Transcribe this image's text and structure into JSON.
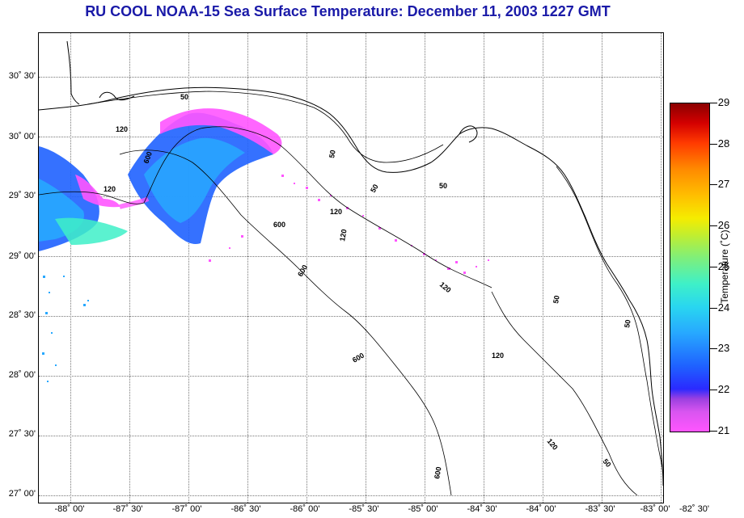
{
  "title": "RU COOL  NOAA-15  Sea Surface Temperature:  December 11, 2003 1227 GMT",
  "map": {
    "lat_labels": [
      "30˚ 30'",
      "30˚ 00'",
      "29˚ 30'",
      "29˚ 00'",
      "28˚ 30'",
      "28˚ 00'",
      "27˚ 30'",
      "27˚ 00'"
    ],
    "lon_labels": [
      "-88˚ 00'",
      "-87˚ 30'",
      "-87˚ 00'",
      "-86˚ 30'",
      "-86˚ 00'",
      "-85˚ 30'",
      "-85˚ 00'",
      "-84˚ 30'",
      "-84˚ 00'",
      "-83˚ 30'",
      "-83˚ 00'",
      "-82˚ 30'"
    ],
    "contour_labels": [
      "50",
      "120",
      "600",
      "120",
      "50",
      "600",
      "120",
      "50",
      "600",
      "120",
      "600",
      "50",
      "120",
      "600",
      "120",
      "50",
      "50",
      "120",
      "50"
    ]
  },
  "colorbar": {
    "title": "Temperature (˚C)",
    "ticks": [
      "29",
      "28",
      "27",
      "26",
      "25",
      "24",
      "23",
      "22",
      "21"
    ],
    "colors": [
      "#8b0000",
      "#ff3a00",
      "#ffbe00",
      "#f5ec00",
      "#7fef7a",
      "#29d6f0",
      "#1f62ff",
      "#9b40e0",
      "#ff55ff"
    ]
  }
}
